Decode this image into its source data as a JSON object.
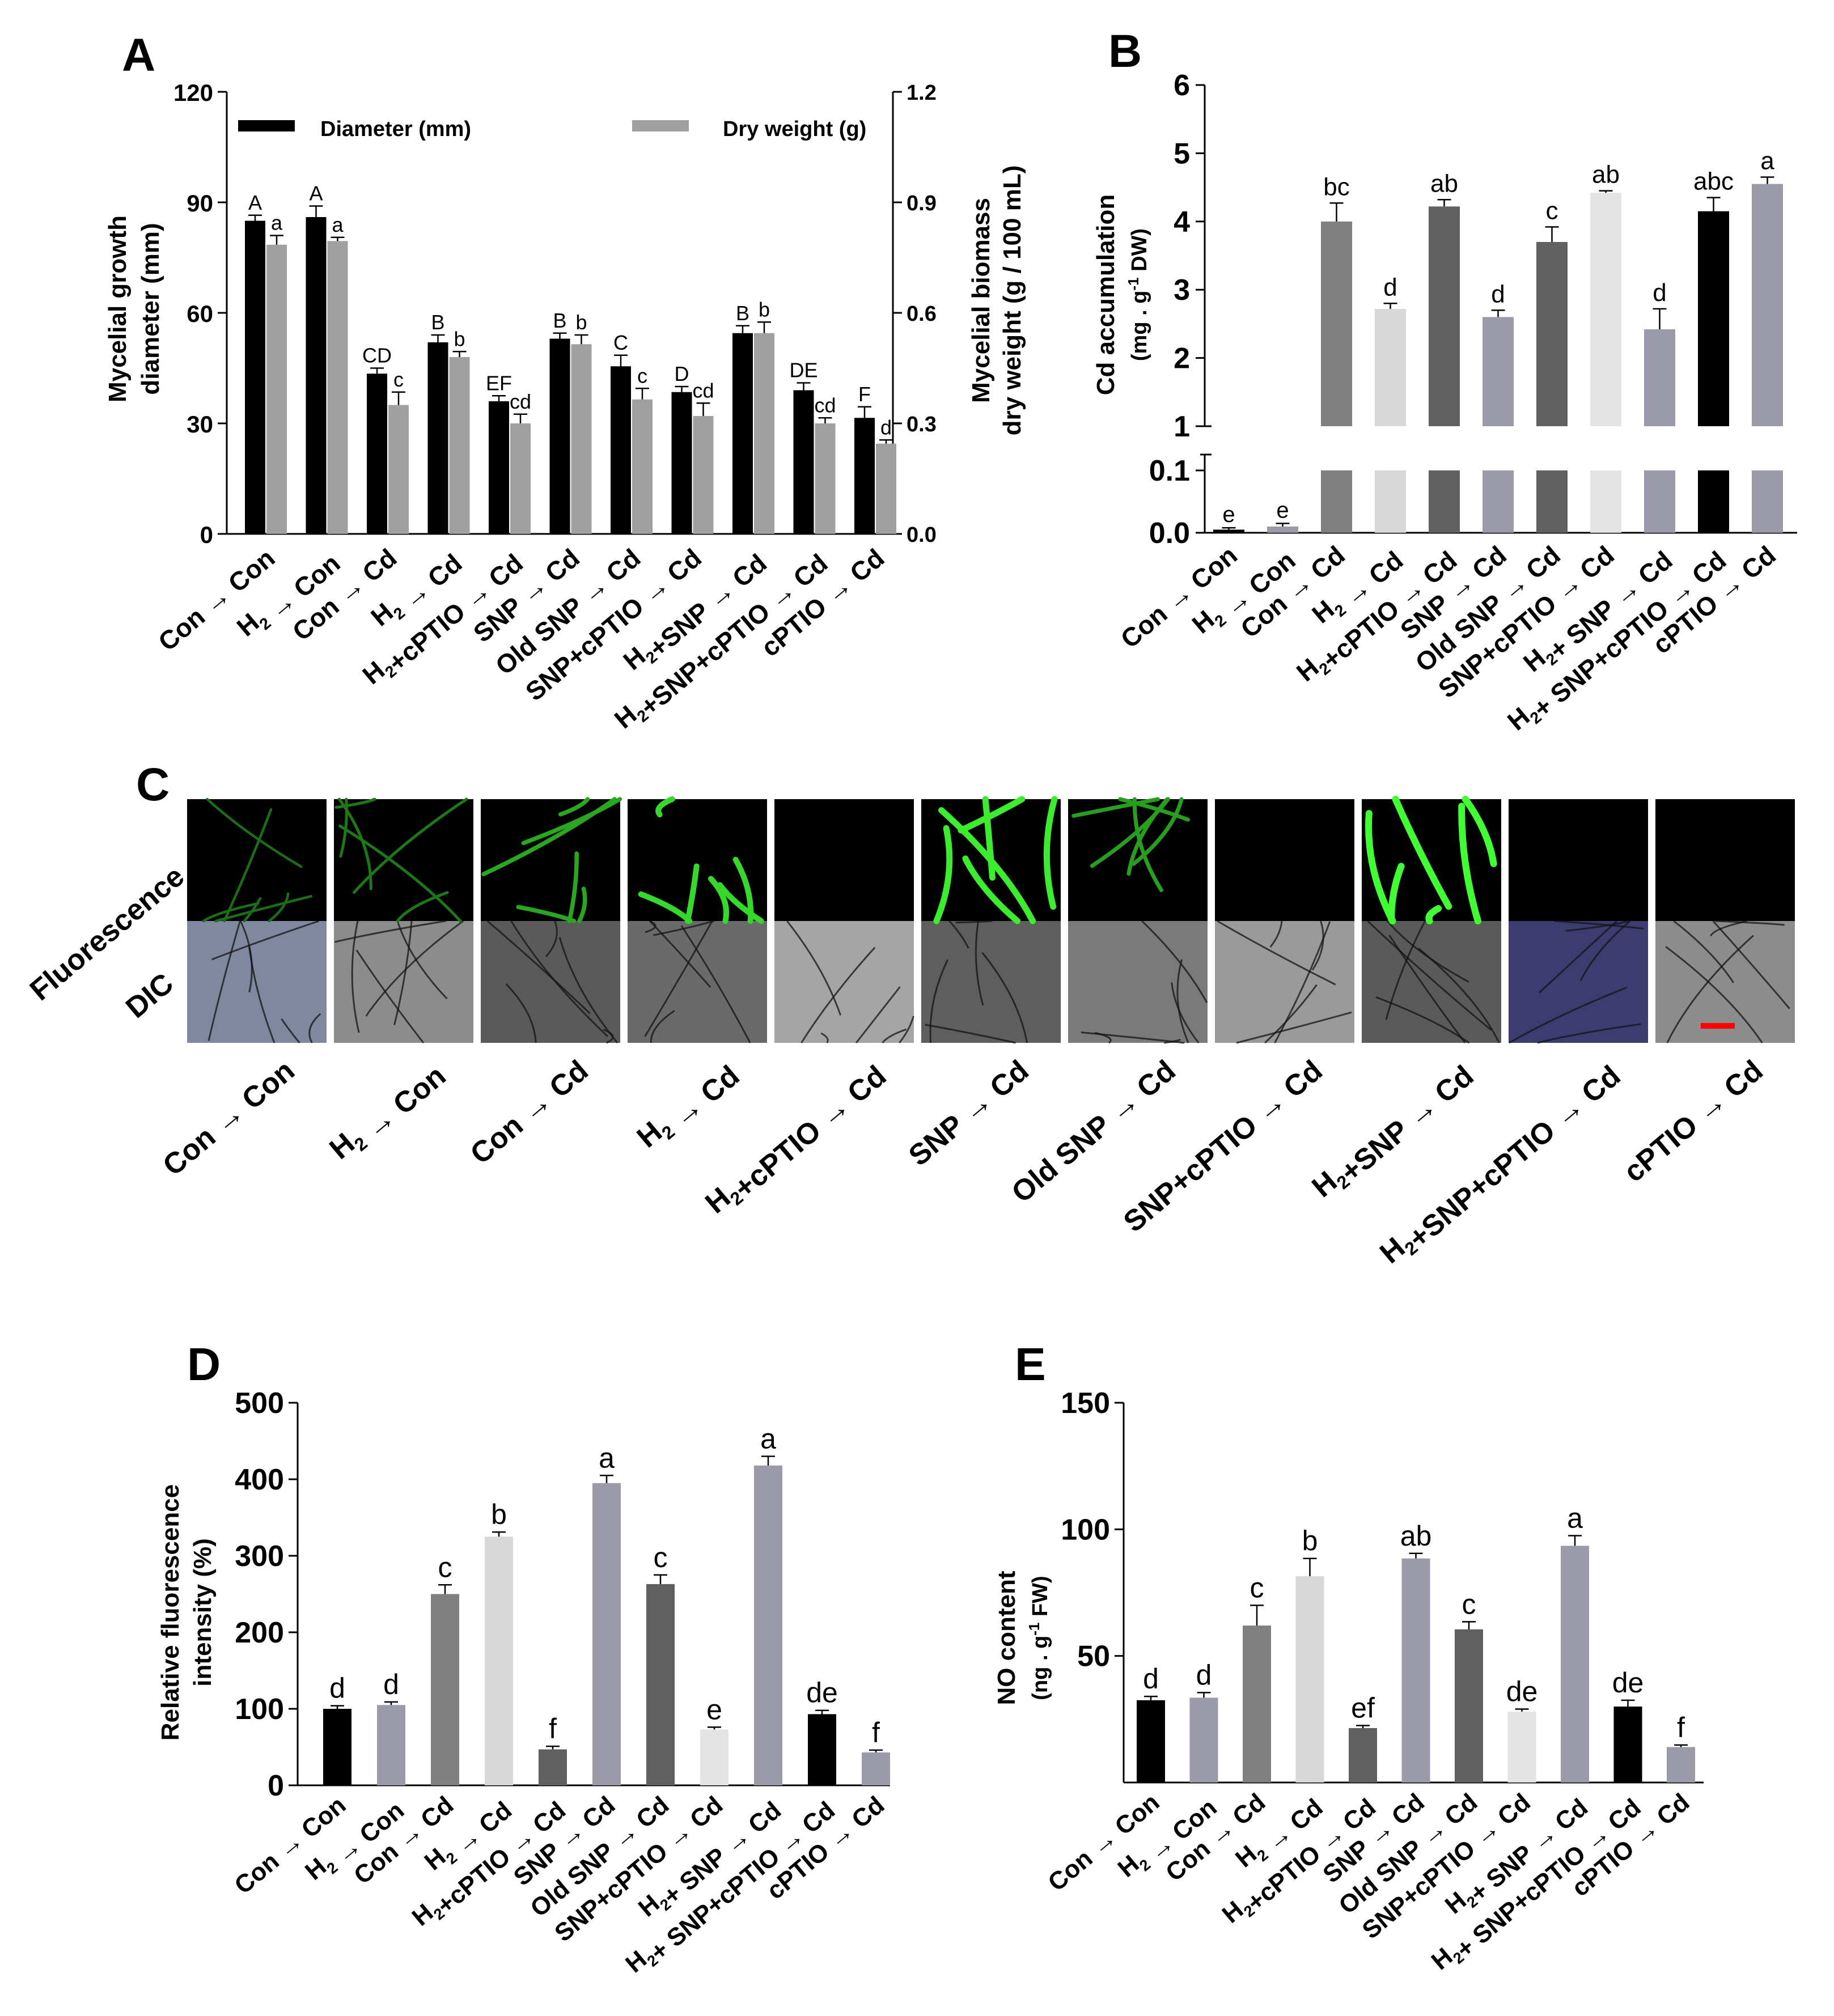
{
  "panels": {
    "A": {
      "letter": "A",
      "ylabel_left": [
        "Mycelial growth",
        "diameter (mm)"
      ],
      "ylabel_right": [
        "Mycelial biomass",
        "dry weight (g / 100 mL)"
      ],
      "legend": [
        "Diameter (mm)",
        "Dry weight (g)"
      ]
    },
    "B": {
      "letter": "B",
      "ylabel": [
        "Cd accumulation",
        "(mg . g-1 DW)"
      ]
    },
    "C": {
      "letter": "C",
      "row_labels": [
        "Fluorescence",
        "DIC"
      ]
    },
    "D": {
      "letter": "D",
      "ylabel": [
        "Relative fluorescence",
        "intensity (%)"
      ]
    },
    "E": {
      "letter": "E",
      "ylabel": [
        "NO content",
        "(ng . g-1 FW)"
      ]
    }
  },
  "treatments": [
    "Con → Con",
    "H2 → Con",
    "Con → Cd",
    "H2 → Cd",
    "H2+cPTIO → Cd",
    "SNP → Cd",
    "Old SNP → Cd",
    "SNP+cPTIO → Cd",
    "H2+SNP → Cd",
    "H2+SNP+cPTIO → Cd",
    "cPTIO → Cd"
  ],
  "treatments_C": [
    "Con → Con",
    "H2 → Con",
    "Con → Cd",
    "H2 → Cd",
    "H2+cPTIO → Cd",
    "SNP → Cd",
    "Old SNP → Cd",
    "SNP+cPTIO → Cd",
    "H2+SNP → Cd",
    "H2+SNP+cPTIO → Cd",
    "cPTIO → Cd"
  ],
  "chart_data": [
    {
      "panel": "A",
      "type": "bar",
      "categories": [
        "Con → Con",
        "H2 → Con",
        "Con → Cd",
        "H2 → Cd",
        "H2+cPTIO → Cd",
        "SNP → Cd",
        "Old SNP → Cd",
        "SNP+cPTIO → Cd",
        "H2+SNP → Cd",
        "H2+SNP+cPTIO → Cd",
        "cPTIO → Cd"
      ],
      "series": [
        {
          "name": "Diameter (mm)",
          "axis": "left",
          "color": "#000000",
          "values": [
            85,
            86,
            43.5,
            52,
            36,
            53,
            45.5,
            38.5,
            54.5,
            39,
            31.5
          ],
          "errors": [
            1.5,
            3,
            1.5,
            2,
            1.5,
            1.5,
            3,
            1.5,
            2,
            2,
            3
          ],
          "letters": [
            "A",
            "A",
            "CD",
            "B",
            "EF",
            "B",
            "C",
            "D",
            "B",
            "DE",
            "F"
          ]
        },
        {
          "name": "Dry weight (g)",
          "axis": "right",
          "color": "#a0a0a0",
          "values": [
            0.785,
            0.795,
            0.35,
            0.48,
            0.3,
            0.515,
            0.365,
            0.32,
            0.545,
            0.3,
            0.245
          ],
          "errors": [
            0.025,
            0.01,
            0.035,
            0.015,
            0.025,
            0.025,
            0.03,
            0.035,
            0.03,
            0.015,
            0.01
          ],
          "letters": [
            "a",
            "a",
            "c",
            "b",
            "cd",
            "b",
            "c",
            "cd",
            "b",
            "cd",
            "d"
          ]
        }
      ],
      "ylim_left": [
        0,
        120
      ],
      "yticks_left": [
        0,
        30,
        60,
        90,
        120
      ],
      "ylim_right": [
        0,
        1.2
      ],
      "yticks_right": [
        "0.0",
        "0.3",
        "0.6",
        "0.9",
        "1.2"
      ],
      "legend_position": "top"
    },
    {
      "panel": "B",
      "type": "bar",
      "broken_axis": true,
      "categories": [
        "Con → Con",
        "H2 → Con",
        "Con → Cd",
        "H2 → Cd",
        "H2+cPTIO → Cd",
        "SNP → Cd",
        "Old SNP → Cd",
        "SNP+cPTIO → Cd",
        "H2+ SNP → Cd",
        "H2+ SNP+cPTIO → Cd",
        "cPTIO → Cd"
      ],
      "values": [
        0.005,
        0.01,
        4.0,
        2.72,
        4.22,
        2.6,
        3.7,
        4.42,
        2.42,
        4.15,
        4.55
      ],
      "errors": [
        0.003,
        0.005,
        0.27,
        0.08,
        0.1,
        0.1,
        0.22,
        0.03,
        0.3,
        0.2,
        0.1
      ],
      "colors": [
        "#000000",
        "#9a9aa8",
        "#808080",
        "#d8d8d8",
        "#606060",
        "#9a9aa8",
        "#606060",
        "#e4e4e4",
        "#9a9aa8",
        "#000000",
        "#9a9aa8"
      ],
      "letters": [
        "e",
        "e",
        "bc",
        "d",
        "ab",
        "d",
        "c",
        "ab",
        "d",
        "abc",
        "a"
      ],
      "yticks_lower": [
        "0.0",
        "0.1"
      ],
      "yticks_upper": [
        1,
        2,
        3,
        4,
        5,
        6
      ],
      "ylim_upper": [
        1,
        6
      ],
      "ylim_lower": [
        0,
        0.1
      ]
    },
    {
      "panel": "D",
      "type": "bar",
      "categories": [
        "Con → Con",
        "H2 → Con",
        "Con → Cd",
        "H2 → Cd",
        "H2+cPTIO → Cd",
        "SNP → Cd",
        "Old SNP → Cd",
        "SNP+cPTIO → Cd",
        "H2+ SNP → Cd",
        "H2+ SNP+cPTIO → Cd",
        "cPTIO → Cd"
      ],
      "values": [
        100,
        105,
        250,
        325,
        47,
        395,
        263,
        73,
        418,
        93,
        43
      ],
      "errors": [
        4,
        4,
        12,
        6,
        4,
        10,
        12,
        3,
        12,
        5,
        3
      ],
      "colors": [
        "#000000",
        "#9a9aa8",
        "#808080",
        "#d8d8d8",
        "#606060",
        "#9a9aa8",
        "#606060",
        "#e4e4e4",
        "#9a9aa8",
        "#000000",
        "#9a9aa8"
      ],
      "letters": [
        "d",
        "d",
        "c",
        "b",
        "f",
        "a",
        "c",
        "e",
        "a",
        "de",
        "f"
      ],
      "ylim": [
        0,
        500
      ],
      "yticks": [
        0,
        100,
        200,
        300,
        400,
        500
      ]
    },
    {
      "panel": "E",
      "type": "bar",
      "categories": [
        "Con → Con",
        "H2 → Con",
        "Con → Cd",
        "H2 → Cd",
        "H2+cPTIO → Cd",
        "SNP → Cd",
        "Old SNP → Cd",
        "SNP+cPTIO → Cd",
        "H2+ SNP → Cd",
        "H2+ SNP+cPTIO → Cd",
        "cPTIO → Cd"
      ],
      "values": [
        32.5,
        33.5,
        62,
        81.5,
        21.5,
        88.5,
        60.5,
        28,
        93.5,
        30,
        14
      ],
      "errors": [
        1.5,
        2,
        8,
        7,
        1,
        2,
        3,
        1,
        4,
        2.5,
        0.8
      ],
      "colors": [
        "#000000",
        "#9a9aa8",
        "#808080",
        "#d8d8d8",
        "#606060",
        "#9a9aa8",
        "#606060",
        "#e4e4e4",
        "#9a9aa8",
        "#000000",
        "#9a9aa8"
      ],
      "letters": [
        "d",
        "d",
        "c",
        "b",
        "ef",
        "ab",
        "c",
        "de",
        "a",
        "de",
        "f"
      ],
      "ylim": [
        0,
        150
      ],
      "yticks": [
        50,
        100,
        150
      ]
    }
  ],
  "micrographs": {
    "fluorescence_intensity": [
      0.25,
      0.3,
      0.55,
      0.8,
      0.03,
      0.9,
      0.5,
      0.05,
      1.0,
      0.04,
      0.02
    ],
    "dic_colors": [
      "#8088a0",
      "#8c8c8c",
      "#5a5a5a",
      "#6a6a6a",
      "#a5a5a5",
      "#5e5e5e",
      "#7a7a7a",
      "#9a9a9a",
      "#5a5a5a",
      "#3c3c70",
      "#8c8c8c"
    ],
    "scale_bar_color": "#ff0000"
  }
}
